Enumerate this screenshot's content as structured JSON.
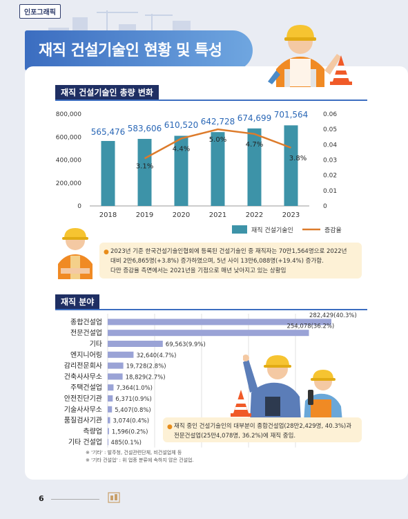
{
  "header": {
    "tag": "인포그래픽",
    "title": "재직 건설기술인 현황 및 특성"
  },
  "section1": {
    "title": "재직 건설기술인 총량 변화",
    "note": [
      "2023년 기준 한국건설기술인협회에 등록된 건설기술인 중 재직자는 70만1,564명으로 2022년",
      "대비 2만6,865명(+3.8%) 증가하였으며, 5년 사이 13만6,088명(+19.4%) 증가함.",
      "다만 증감율 측면에서는 2021년을 기점으로 매년 낮아지고 있는 상황임"
    ]
  },
  "section2": {
    "title": "재직 분야",
    "note": [
      "재직 중인 건설기술인의 대부분이 종합건설업(28만2,429명, 40.3%)과",
      "전문건설업(25만4,078명, 36.2%)에 재직 중임."
    ],
    "footnotes": [
      "※ '기타' : 발주청, 건설관련단체, 비건설업체 등",
      "※ '기타 건설업' : 위 업종 분류에 속하지 않은 건설업."
    ]
  },
  "page_number": "6",
  "colors": {
    "navy": "#1f2f63",
    "bar_teal": "#3d93a8",
    "line_orange": "#dd7b2b",
    "field_bar": "#9aa3d6",
    "value_blue": "#2a67b6"
  },
  "icons": [
    "skyline-icon",
    "construction-worker-icon",
    "traffic-cone-icon",
    "book-icon"
  ],
  "chart_data": [
    {
      "type": "bar",
      "title": "재직 건설기술인 총량 변화",
      "categories": [
        "2018",
        "2019",
        "2020",
        "2021",
        "2022",
        "2023"
      ],
      "series": [
        {
          "name": "재직 건설기술인",
          "values": [
            565476,
            583606,
            610520,
            642728,
            674699,
            701564
          ],
          "labels": [
            "565,476",
            "583,606",
            "610,520",
            "642,728",
            "674,699",
            "701,564"
          ],
          "axis": "left"
        },
        {
          "name": "증감율",
          "type": "line",
          "x": [
            "2019",
            "2020",
            "2021",
            "2022",
            "2023"
          ],
          "values": [
            0.031,
            0.044,
            0.05,
            0.047,
            0.038
          ],
          "labels": [
            "3.1%",
            "4.4%",
            "5.0%",
            "4.7%",
            "3.8%"
          ],
          "axis": "right"
        }
      ],
      "ylim": [
        0,
        800000
      ],
      "y_ticks": [
        "0",
        "200,000",
        "400,000",
        "600,000",
        "800,000"
      ],
      "y2lim": [
        0,
        0.06
      ],
      "y2_ticks": [
        "0",
        "0.01",
        "0.02",
        "0.03",
        "0.04",
        "0.05",
        "0.06"
      ],
      "legend": "bottom-right",
      "grid": false
    },
    {
      "type": "bar",
      "title": "재직 분야",
      "orientation": "horizontal",
      "categories": [
        "종합건설업",
        "전문건설업",
        "기타",
        "엔지니어링",
        "감리전문회사",
        "건축사사무소",
        "주택건설업",
        "안전진단기관",
        "기술사사무소",
        "품질검사기관",
        "측량업",
        "기타 건설업"
      ],
      "values": [
        282429,
        254078,
        69563,
        32640,
        19728,
        18829,
        7364,
        6371,
        5407,
        3074,
        1596,
        485
      ],
      "labels": [
        "282,429(40.3%)",
        "254,078(36.2%)",
        "69,563(9.9%)",
        "32,640(4.7%)",
        "19,728(2.8%)",
        "18,829(2.7%)",
        "7,364(1.0%)",
        "6,371(0.9%)",
        "5,407(0.8%)",
        "3,074(0.4%)",
        "1,596(0.2%)",
        "485(0.1%)"
      ],
      "grid": true
    }
  ]
}
